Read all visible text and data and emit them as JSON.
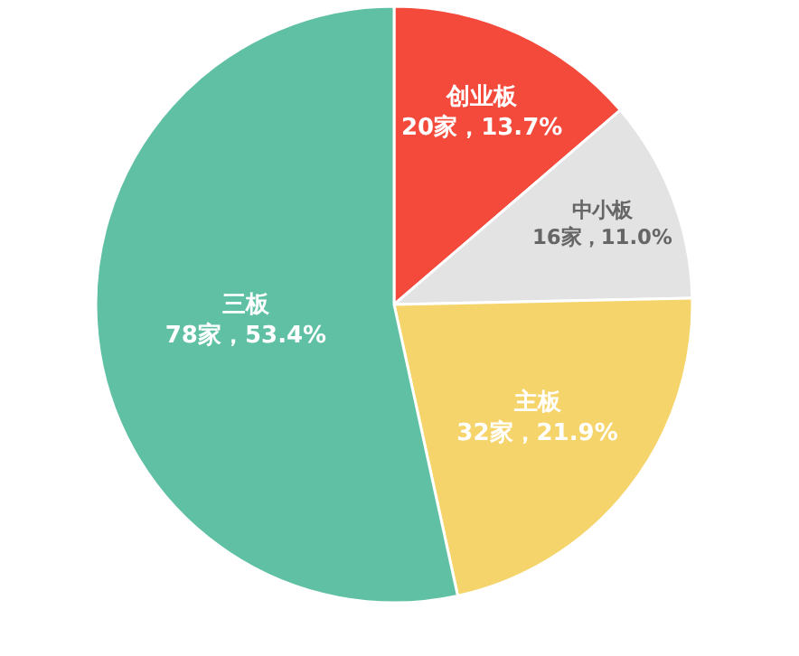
{
  "chart_data": {
    "type": "pie",
    "categories": [
      "创业板",
      "中小板",
      "主板",
      "三板"
    ],
    "values": [
      20,
      16,
      32,
      78
    ],
    "value_labels": [
      "20家，13.7%",
      "16家，11.0%",
      "32家，21.9%",
      "78家，53.4%"
    ],
    "colors": [
      "#f44a3c",
      "#e3e3e3",
      "#f5d56b",
      "#5fc0a4"
    ],
    "legend": false
  }
}
